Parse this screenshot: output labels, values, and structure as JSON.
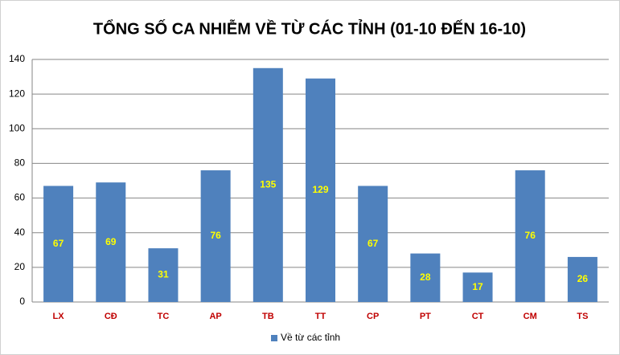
{
  "chart_data": {
    "type": "bar",
    "title": "TỔNG SỐ CA NHIỄM VỀ TỪ CÁC TỈNH (01-10 ĐẾN 16-10)",
    "categories": [
      "LX",
      "CĐ",
      "TC",
      "AP",
      "TB",
      "TT",
      "CP",
      "PT",
      "CT",
      "CM",
      "TS"
    ],
    "series": [
      {
        "name": "Về từ các tỉnh",
        "color": "#4f81bd",
        "values": [
          67,
          69,
          31,
          76,
          135,
          129,
          67,
          28,
          17,
          76,
          26
        ]
      }
    ],
    "ylim": [
      0,
      140
    ],
    "yticks": [
      0,
      20,
      40,
      60,
      80,
      100,
      120,
      140
    ],
    "grid": true,
    "legend": "bottom"
  }
}
